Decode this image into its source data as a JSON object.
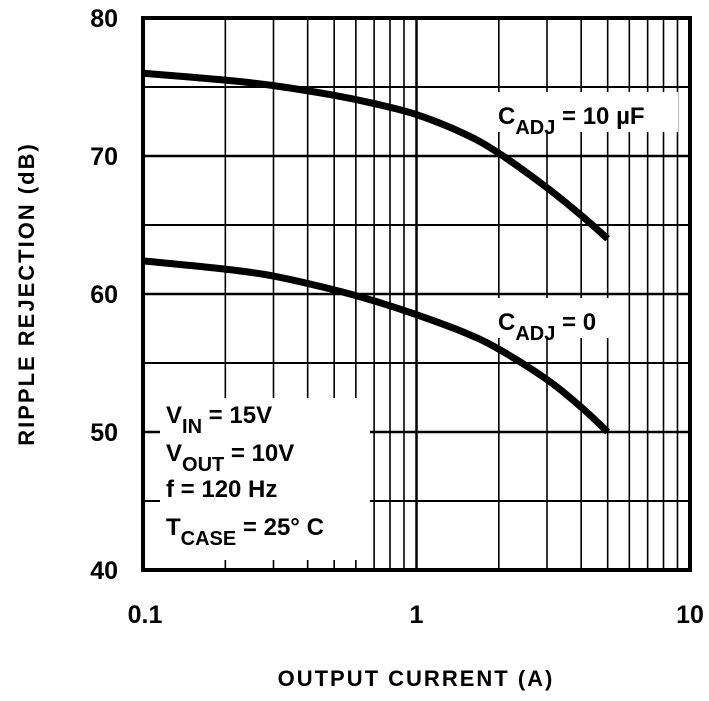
{
  "chart_data": {
    "type": "line",
    "title": "",
    "xlabel": "OUTPUT CURRENT (A)",
    "ylabel": "RIPPLE REJECTION (dB)",
    "xscale": "log",
    "xlim": [
      0.1,
      10
    ],
    "ylim": [
      40,
      80
    ],
    "grid": true,
    "x_ticks": [
      0.1,
      1,
      10
    ],
    "x_tick_labels": [
      "0.1",
      "1",
      "10"
    ],
    "y_ticks": [
      40,
      50,
      60,
      70,
      80
    ],
    "y_tick_labels": [
      "40",
      "50",
      "60",
      "70",
      "80"
    ],
    "y_minor_grid_step": 5,
    "x": [
      0.1,
      0.2,
      0.3,
      0.5,
      0.7,
      1,
      1.5,
      2,
      3,
      4,
      5
    ],
    "series": [
      {
        "name": "CADJ = 10 µF",
        "label_main": "C",
        "label_sub": "ADJ",
        "label_rest": " = 10 µF",
        "values": [
          76.0,
          75.5,
          75.1,
          74.4,
          73.8,
          73.0,
          71.6,
          70.2,
          67.7,
          65.7,
          64.0
        ]
      },
      {
        "name": "CADJ = 0",
        "label_main": "C",
        "label_sub": "ADJ",
        "label_rest": " = 0",
        "values": [
          62.4,
          61.8,
          61.3,
          60.3,
          59.5,
          58.5,
          57.2,
          56.0,
          53.8,
          51.8,
          50.0
        ]
      }
    ],
    "annotations": [
      {
        "main": "V",
        "sub": "IN",
        "rest": " = 15V"
      },
      {
        "main": "V",
        "sub": "OUT",
        "rest": " = 10V"
      },
      {
        "main": "f = 120 Hz",
        "sub": "",
        "rest": ""
      },
      {
        "main": "T",
        "sub": "CASE",
        "rest": " = 25° C"
      }
    ],
    "line_color": "#000000",
    "background": "#ffffff"
  }
}
